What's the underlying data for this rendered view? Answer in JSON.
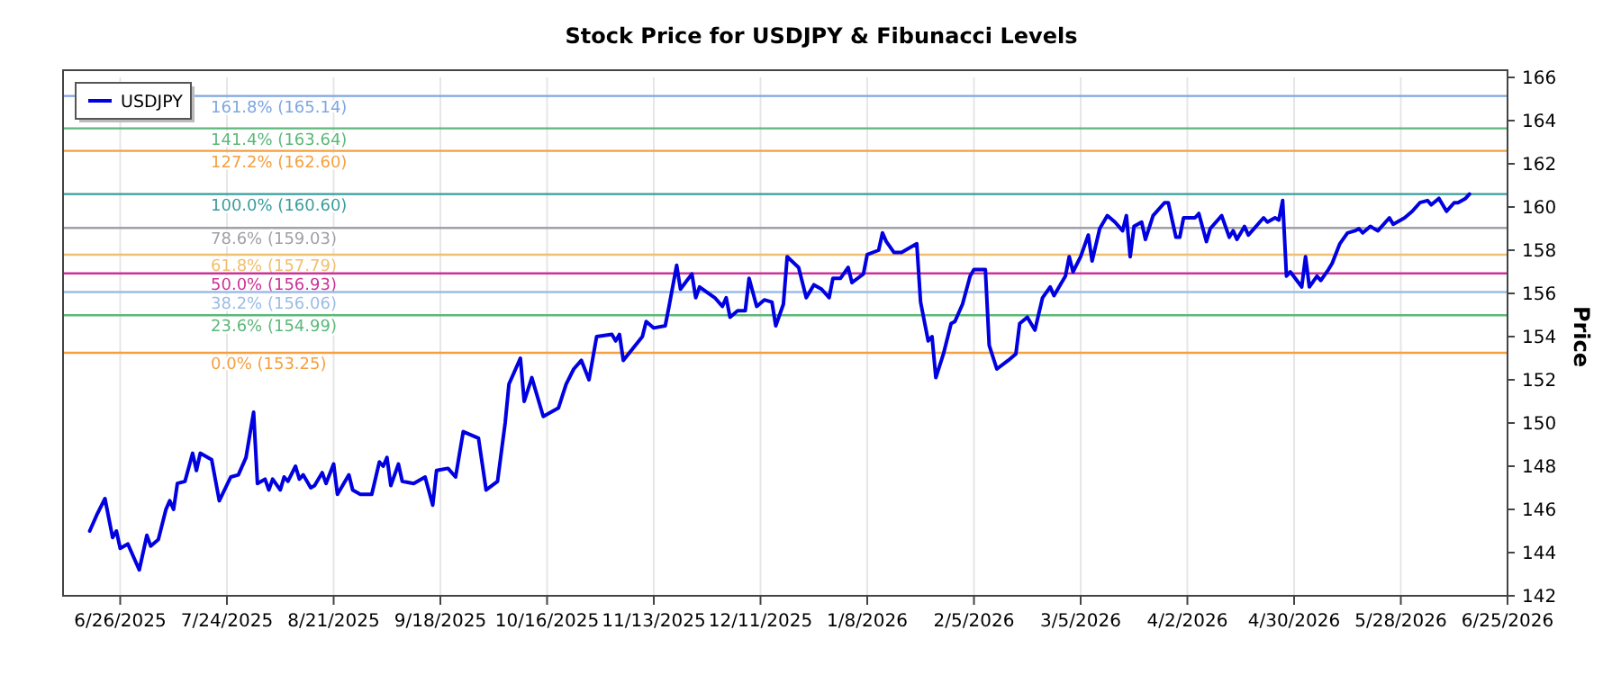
{
  "chart_data": {
    "type": "line",
    "title": "Stock Price for USDJPY & Fibunacci Levels",
    "ylabel": "Price",
    "x": [
      "2025-06-18",
      "2025-06-20",
      "2025-06-22",
      "2025-06-24",
      "2025-06-25",
      "2025-06-26",
      "2025-06-28",
      "2025-06-29",
      "2025-07-01",
      "2025-07-03",
      "2025-07-04",
      "2025-07-06",
      "2025-07-08",
      "2025-07-09",
      "2025-07-10",
      "2025-07-11",
      "2025-07-13",
      "2025-07-15",
      "2025-07-16",
      "2025-07-17",
      "2025-07-20",
      "2025-07-22",
      "2025-07-25",
      "2025-07-27",
      "2025-07-29",
      "2025-07-31",
      "2025-08-01",
      "2025-08-03",
      "2025-08-04",
      "2025-08-05",
      "2025-08-07",
      "2025-08-08",
      "2025-08-09",
      "2025-08-11",
      "2025-08-12",
      "2025-08-13",
      "2025-08-15",
      "2025-08-16",
      "2025-08-18",
      "2025-08-19",
      "2025-08-21",
      "2025-08-22",
      "2025-08-25",
      "2025-08-26",
      "2025-08-28",
      "2025-08-31",
      "2025-09-02",
      "2025-09-03",
      "2025-09-04",
      "2025-09-05",
      "2025-09-07",
      "2025-09-08",
      "2025-09-11",
      "2025-09-14",
      "2025-09-16",
      "2025-09-17",
      "2025-09-20",
      "2025-09-22",
      "2025-09-24",
      "2025-09-28",
      "2025-09-30",
      "2025-10-03",
      "2025-10-05",
      "2025-10-06",
      "2025-10-09",
      "2025-10-10",
      "2025-10-12",
      "2025-10-15",
      "2025-10-19",
      "2025-10-21",
      "2025-10-23",
      "2025-10-25",
      "2025-10-27",
      "2025-10-29",
      "2025-11-02",
      "2025-11-03",
      "2025-11-04",
      "2025-11-05",
      "2025-11-10",
      "2025-11-11",
      "2025-11-13",
      "2025-11-16",
      "2025-11-17",
      "2025-11-19",
      "2025-11-20",
      "2025-11-23",
      "2025-11-24",
      "2025-11-25",
      "2025-11-29",
      "2025-12-01",
      "2025-12-02",
      "2025-12-03",
      "2025-12-05",
      "2025-12-07",
      "2025-12-08",
      "2025-12-10",
      "2025-12-12",
      "2025-12-14",
      "2025-12-15",
      "2025-12-17",
      "2025-12-18",
      "2025-12-21",
      "2025-12-23",
      "2025-12-25",
      "2025-12-27",
      "2025-12-29",
      "2025-12-30",
      "2026-01-01",
      "2026-01-03",
      "2026-01-04",
      "2026-01-07",
      "2026-01-08",
      "2026-01-11",
      "2026-01-12",
      "2026-01-13",
      "2026-01-15",
      "2026-01-17",
      "2026-01-21",
      "2026-01-22",
      "2026-01-24",
      "2026-01-25",
      "2026-01-26",
      "2026-01-28",
      "2026-01-30",
      "2026-01-31",
      "2026-02-02",
      "2026-02-04",
      "2026-02-05",
      "2026-02-08",
      "2026-02-09",
      "2026-02-11",
      "2026-02-14",
      "2026-02-16",
      "2026-02-17",
      "2026-02-19",
      "2026-02-21",
      "2026-02-23",
      "2026-02-25",
      "2026-02-26",
      "2026-03-01",
      "2026-03-02",
      "2026-03-03",
      "2026-03-05",
      "2026-03-07",
      "2026-03-08",
      "2026-03-10",
      "2026-03-12",
      "2026-03-14",
      "2026-03-16",
      "2026-03-17",
      "2026-03-18",
      "2026-03-19",
      "2026-03-21",
      "2026-03-22",
      "2026-03-24",
      "2026-03-27",
      "2026-03-28",
      "2026-03-30",
      "2026-03-31",
      "2026-04-01",
      "2026-04-04",
      "2026-04-05",
      "2026-04-07",
      "2026-04-08",
      "2026-04-11",
      "2026-04-13",
      "2026-04-14",
      "2026-04-15",
      "2026-04-17",
      "2026-04-18",
      "2026-04-21",
      "2026-04-22",
      "2026-04-23",
      "2026-04-25",
      "2026-04-26",
      "2026-04-27",
      "2026-04-28",
      "2026-04-29",
      "2026-05-02",
      "2026-05-03",
      "2026-05-04",
      "2026-05-06",
      "2026-05-07",
      "2026-05-09",
      "2026-05-10",
      "2026-05-12",
      "2026-05-14",
      "2026-05-16",
      "2026-05-17",
      "2026-05-18",
      "2026-05-20",
      "2026-05-22",
      "2026-05-25",
      "2026-05-26",
      "2026-05-29",
      "2026-05-31",
      "2026-06-02",
      "2026-06-04",
      "2026-06-05",
      "2026-06-07",
      "2026-06-09",
      "2026-06-11",
      "2026-06-12",
      "2026-06-14",
      "2026-06-15"
    ],
    "series": [
      {
        "name": "USDJPY",
        "color": "#0000e0",
        "values": [
          145.0,
          145.8,
          146.5,
          144.7,
          145.0,
          144.2,
          144.4,
          144.0,
          143.2,
          144.8,
          144.3,
          144.6,
          146.0,
          146.4,
          146.0,
          147.2,
          147.3,
          148.6,
          147.8,
          148.6,
          148.3,
          146.4,
          147.5,
          147.6,
          148.4,
          150.5,
          147.2,
          147.4,
          146.9,
          147.4,
          146.9,
          147.5,
          147.3,
          148.0,
          147.4,
          147.6,
          147.0,
          147.1,
          147.7,
          147.2,
          148.1,
          146.7,
          147.6,
          146.9,
          146.7,
          146.7,
          148.2,
          148.0,
          148.4,
          147.1,
          148.1,
          147.3,
          147.2,
          147.5,
          146.2,
          147.8,
          147.9,
          147.5,
          149.6,
          149.3,
          146.9,
          147.3,
          150.0,
          151.8,
          153.0,
          151.0,
          152.1,
          150.3,
          150.7,
          151.8,
          152.5,
          152.9,
          152.0,
          154.0,
          154.1,
          153.8,
          154.1,
          152.9,
          154.0,
          154.7,
          154.4,
          154.5,
          155.4,
          157.3,
          156.2,
          156.9,
          155.8,
          156.3,
          155.8,
          155.4,
          155.8,
          154.9,
          155.2,
          155.2,
          156.7,
          155.4,
          155.7,
          155.6,
          154.5,
          155.5,
          157.7,
          157.2,
          155.8,
          156.4,
          156.2,
          155.8,
          156.7,
          156.7,
          157.2,
          156.5,
          156.9,
          157.8,
          158.0,
          158.8,
          158.4,
          157.9,
          157.9,
          158.3,
          155.6,
          153.8,
          154.0,
          152.1,
          153.2,
          154.6,
          154.7,
          155.5,
          156.8,
          157.1,
          157.1,
          153.6,
          152.5,
          152.9,
          153.2,
          154.6,
          154.9,
          154.3,
          155.8,
          156.3,
          155.9,
          156.8,
          157.7,
          157.0,
          157.7,
          158.7,
          157.5,
          159.0,
          159.6,
          159.3,
          158.9,
          159.6,
          157.7,
          159.1,
          159.3,
          158.5,
          159.6,
          160.2,
          160.2,
          158.6,
          158.6,
          159.5,
          159.5,
          159.7,
          158.4,
          159.0,
          159.6,
          158.6,
          158.9,
          158.5,
          159.1,
          158.7,
          159.3,
          159.5,
          159.3,
          159.5,
          159.4,
          160.3,
          156.8,
          157.0,
          156.3,
          157.7,
          156.3,
          156.8,
          156.6,
          157.1,
          157.4,
          158.3,
          158.8,
          158.9,
          159.0,
          158.8,
          159.1,
          158.9,
          159.5,
          159.2,
          159.5,
          159.8,
          160.2,
          160.3,
          160.1,
          160.4,
          159.8,
          160.2,
          160.2,
          160.4,
          160.6
        ]
      }
    ],
    "xlim": [
      "2025-06-11",
      "2026-06-25"
    ],
    "xticks": [
      {
        "value": "2025-06-26",
        "label": "6/26/2025"
      },
      {
        "value": "2025-07-24",
        "label": "7/24/2025"
      },
      {
        "value": "2025-08-21",
        "label": "8/21/2025"
      },
      {
        "value": "2025-09-18",
        "label": "9/18/2025"
      },
      {
        "value": "2025-10-16",
        "label": "10/16/2025"
      },
      {
        "value": "2025-11-13",
        "label": "11/13/2025"
      },
      {
        "value": "2025-12-11",
        "label": "12/11/2025"
      },
      {
        "value": "2026-01-08",
        "label": "1/8/2026"
      },
      {
        "value": "2026-02-05",
        "label": "2/5/2026"
      },
      {
        "value": "2026-03-05",
        "label": "3/5/2026"
      },
      {
        "value": "2026-04-02",
        "label": "4/2/2026"
      },
      {
        "value": "2026-04-30",
        "label": "4/30/2026"
      },
      {
        "value": "2026-05-28",
        "label": "5/28/2026"
      },
      {
        "value": "2026-06-25",
        "label": "6/25/2026"
      }
    ],
    "ylim": [
      142,
      166
    ],
    "yticks": [
      142,
      144,
      146,
      148,
      150,
      152,
      154,
      156,
      158,
      160,
      162,
      164,
      166
    ],
    "ref_lines": [
      {
        "axis": "y",
        "value": 165.14,
        "label": "161.8% (165.14)",
        "color": "#7ea6e0"
      },
      {
        "axis": "y",
        "value": 163.64,
        "label": "141.4% (163.64)",
        "color": "#5cb87a"
      },
      {
        "axis": "y",
        "value": 162.6,
        "label": "127.2% (162.60)",
        "color": "#f5a040"
      },
      {
        "axis": "y",
        "value": 160.6,
        "label": "100.0% (160.60)",
        "color": "#3a9c9c"
      },
      {
        "axis": "y",
        "value": 159.03,
        "label": "78.6% (159.03)",
        "color": "#a0a0a8"
      },
      {
        "axis": "y",
        "value": 157.79,
        "label": "61.8% (157.79)",
        "color": "#f0c070"
      },
      {
        "axis": "y",
        "value": 156.93,
        "label": "50.0% (156.93)",
        "color": "#cc3399"
      },
      {
        "axis": "y",
        "value": 156.06,
        "label": "38.2% (156.06)",
        "color": "#9cbce6"
      },
      {
        "axis": "y",
        "value": 154.99,
        "label": "23.6% (154.99)",
        "color": "#5cb87a"
      },
      {
        "axis": "y",
        "value": 153.25,
        "label": "0.0% (153.25)",
        "color": "#f5a040"
      }
    ],
    "grid": "x",
    "legend": "top left"
  }
}
